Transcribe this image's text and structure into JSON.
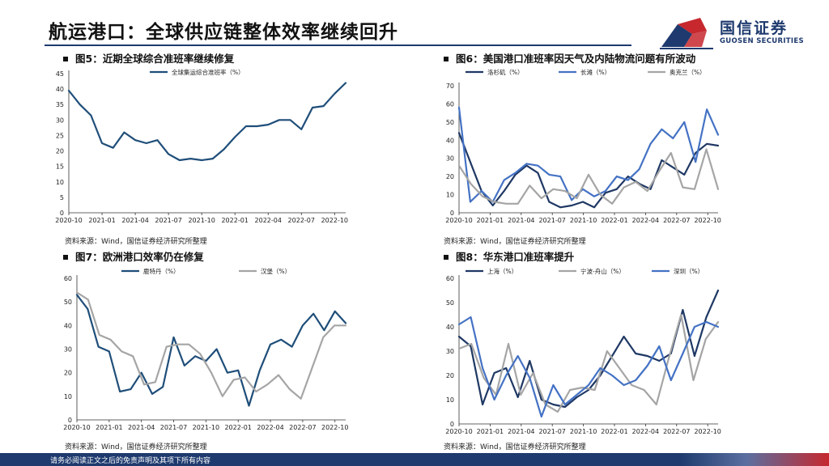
{
  "header": {
    "title": "航运港口：全球供应链整体效率继续回升",
    "logo_cn": "国信证券",
    "logo_en": "GUOSEN SECURITIES"
  },
  "footer": {
    "disclaimer": "请务必阅读正文之后的免责声明及其项下所有内容"
  },
  "panels": [
    {
      "title": "图5：近期全球综合准班率继续修复",
      "source": "资料来源：Wind，国信证券经济研究所整理"
    },
    {
      "title": "图6：美国港口准班率因天气及内陆物流问题有所波动",
      "source": "资料来源：Wind，国信证券经济研究所整理"
    },
    {
      "title": "图7：欧洲港口效率仍在修复",
      "source": "资料来源：Wind，国信证券经济研究所整理"
    },
    {
      "title": "图8：华东港口准班率提升",
      "source": "资料来源：Wind，国信证券经济研究所整理"
    }
  ],
  "chart_data": [
    {
      "type": "line",
      "ylim": [
        0,
        45
      ],
      "yticks": [
        0,
        5,
        10,
        15,
        20,
        25,
        30,
        35,
        40,
        45
      ],
      "xlim": [
        0,
        25
      ],
      "xtick_positions": [
        0,
        3,
        6,
        9,
        12,
        15,
        18,
        21,
        24
      ],
      "xtick_labels": [
        "2020-10",
        "2021-01",
        "2021-04",
        "2021-07",
        "2021-10",
        "2022-01",
        "2022-04",
        "2022-07",
        "2022-10"
      ],
      "series": [
        {
          "name": "全球集运综合准班率（%）",
          "color": "#1f4e79",
          "values": [
            39.5,
            35.0,
            31.5,
            22.5,
            21.0,
            26.0,
            23.5,
            22.5,
            23.5,
            19.0,
            17.0,
            17.5,
            17.0,
            17.5,
            20.5,
            24.5,
            28.0,
            28.0,
            28.5,
            30.0,
            30.0,
            27.0,
            34.0,
            34.5,
            38.5,
            42.0
          ]
        }
      ]
    },
    {
      "type": "line",
      "ylim": [
        0,
        70
      ],
      "yticks": [
        0,
        10,
        20,
        30,
        40,
        50,
        60,
        70
      ],
      "xlim": [
        0,
        25
      ],
      "xtick_positions": [
        0,
        3,
        6,
        9,
        12,
        15,
        18,
        21,
        24
      ],
      "xtick_labels": [
        "2020-10",
        "2021-01",
        "2021-04",
        "2021-07",
        "2021-10",
        "2022-01",
        "2022-04",
        "2022-07",
        "2022-10"
      ],
      "series": [
        {
          "name": "洛杉矶（%）",
          "color": "#1f3864",
          "values": [
            44,
            28,
            12,
            4,
            12,
            21,
            26,
            22,
            6,
            3,
            4,
            6,
            3,
            11,
            13,
            20,
            16,
            13,
            29,
            25,
            21,
            33,
            38,
            37
          ]
        },
        {
          "name": "长滩（%）",
          "color": "#4472c4",
          "values": [
            58,
            6,
            12,
            6,
            18,
            22,
            27,
            26,
            21,
            20,
            7,
            13,
            9,
            12,
            20,
            18,
            24,
            38,
            46,
            41,
            50,
            28,
            57,
            43
          ]
        },
        {
          "name": "奥克兰（%）",
          "color": "#a5a5a5",
          "values": [
            26,
            16,
            9,
            6,
            5,
            5,
            15,
            8,
            13,
            12,
            8,
            21,
            10,
            5,
            14,
            17,
            12,
            23,
            33,
            14,
            13,
            35,
            13
          ]
        }
      ]
    },
    {
      "type": "line",
      "ylim": [
        0,
        60
      ],
      "yticks": [
        0,
        10,
        20,
        30,
        40,
        50,
        60
      ],
      "xlim": [
        0,
        25
      ],
      "xtick_positions": [
        0,
        3,
        6,
        9,
        12,
        15,
        18,
        21,
        24
      ],
      "xtick_labels": [
        "2020-10",
        "2021-01",
        "2021-04",
        "2021-07",
        "2021-10",
        "2022-01",
        "2022-04",
        "2022-07",
        "2022-10"
      ],
      "series": [
        {
          "name": "鹿特丹（%）",
          "color": "#1f4e79",
          "values": [
            53,
            47,
            31,
            29,
            12,
            13,
            20,
            11,
            14,
            35,
            23,
            27,
            25,
            30,
            20,
            21,
            6,
            21,
            32,
            34,
            31,
            40,
            45,
            38,
            46,
            41
          ]
        },
        {
          "name": "汉堡（%）",
          "color": "#a5a5a5",
          "values": [
            54,
            51,
            36,
            34,
            29,
            27,
            15,
            16,
            31,
            32,
            32,
            28,
            20,
            10,
            17,
            18,
            12,
            15,
            19,
            13,
            9,
            22,
            35,
            40,
            40
          ]
        }
      ]
    },
    {
      "type": "line",
      "ylim": [
        0,
        60
      ],
      "yticks": [
        0,
        10,
        20,
        30,
        40,
        50,
        60
      ],
      "xlim": [
        0,
        25
      ],
      "xtick_positions": [
        0,
        3,
        6,
        9,
        12,
        15,
        18,
        21,
        24
      ],
      "xtick_labels": [
        "2020-10",
        "2021-01",
        "2021-04",
        "2021-07",
        "2021-10",
        "2022-01",
        "2022-04",
        "2022-07",
        "2022-10"
      ],
      "series": [
        {
          "name": "上海（%）",
          "color": "#1f3864",
          "values": [
            36,
            32,
            8,
            21,
            23,
            11,
            26,
            10,
            8,
            7,
            11,
            14,
            20,
            28,
            36,
            29,
            28,
            26,
            29,
            47,
            28,
            44,
            55
          ]
        },
        {
          "name": "宁波-舟山（%）",
          "color": "#a5a5a5",
          "values": [
            31,
            33,
            19,
            12,
            33,
            12,
            21,
            8,
            5,
            14,
            15,
            14,
            30,
            23,
            16,
            14,
            8,
            27,
            45,
            18,
            35,
            42
          ]
        },
        {
          "name": "深圳（%）",
          "color": "#4472c4",
          "values": [
            41,
            44,
            23,
            10,
            20,
            28,
            19,
            3,
            16,
            8,
            12,
            16,
            23,
            20,
            16,
            18,
            24,
            32,
            18,
            29,
            40,
            42,
            40
          ]
        }
      ]
    }
  ]
}
